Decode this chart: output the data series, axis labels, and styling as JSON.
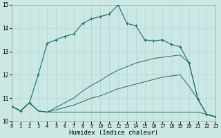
{
  "xlabel": "Humidex (Indice chaleur)",
  "xlim": [
    0,
    23
  ],
  "ylim": [
    10,
    15
  ],
  "yticks": [
    10,
    11,
    12,
    13,
    14,
    15
  ],
  "xticks": [
    0,
    1,
    2,
    3,
    4,
    5,
    6,
    7,
    8,
    9,
    10,
    11,
    12,
    13,
    14,
    15,
    16,
    17,
    18,
    19,
    20,
    21,
    22,
    23
  ],
  "bg_color": "#cce8e4",
  "grid_color": "#b0d4d0",
  "line_color": "#1a6e64",
  "series_main": {
    "x": [
      0,
      1,
      2,
      3,
      4,
      5,
      6,
      7,
      8,
      9,
      10,
      11,
      12,
      13,
      14,
      15,
      16,
      17,
      18,
      19,
      20,
      21,
      22,
      23
    ],
    "y": [
      10.65,
      10.45,
      10.8,
      12.0,
      13.35,
      13.5,
      13.65,
      13.75,
      14.2,
      14.4,
      14.5,
      14.6,
      15.0,
      14.2,
      14.1,
      13.5,
      13.45,
      13.5,
      13.3,
      13.2,
      12.5,
      10.95,
      10.3,
      10.2
    ]
  },
  "series_low": {
    "x": [
      0,
      1,
      2,
      3,
      4,
      5,
      6,
      7,
      8,
      9,
      10,
      11,
      12,
      13,
      14,
      15,
      16,
      17,
      18,
      19,
      20,
      21,
      22,
      23
    ],
    "y": [
      10.65,
      10.45,
      10.8,
      10.45,
      10.4,
      10.4,
      10.4,
      10.4,
      10.4,
      10.4,
      10.4,
      10.4,
      10.4,
      10.4,
      10.4,
      10.4,
      10.4,
      10.4,
      10.4,
      10.4,
      10.4,
      10.4,
      10.3,
      10.2
    ]
  },
  "series_mid": {
    "x": [
      0,
      1,
      2,
      3,
      4,
      5,
      6,
      7,
      8,
      9,
      10,
      11,
      12,
      13,
      14,
      15,
      16,
      17,
      18,
      19,
      20,
      21,
      22,
      23
    ],
    "y": [
      10.65,
      10.45,
      10.8,
      10.45,
      10.4,
      10.5,
      10.6,
      10.7,
      10.85,
      11.0,
      11.1,
      11.25,
      11.4,
      11.5,
      11.6,
      11.7,
      11.8,
      11.9,
      11.95,
      12.0,
      11.5,
      10.95,
      10.3,
      10.2
    ]
  },
  "series_upper": {
    "x": [
      0,
      1,
      2,
      3,
      4,
      5,
      6,
      7,
      8,
      9,
      10,
      11,
      12,
      13,
      14,
      15,
      16,
      17,
      18,
      19,
      20,
      21,
      22,
      23
    ],
    "y": [
      10.65,
      10.45,
      10.8,
      10.45,
      10.4,
      10.6,
      10.8,
      11.0,
      11.3,
      11.55,
      11.75,
      12.0,
      12.2,
      12.35,
      12.5,
      12.6,
      12.7,
      12.75,
      12.8,
      12.85,
      12.5,
      10.95,
      10.3,
      10.2
    ]
  }
}
